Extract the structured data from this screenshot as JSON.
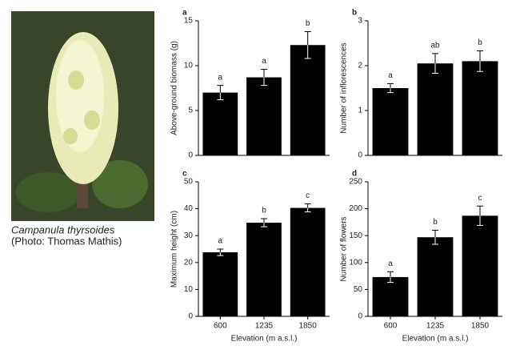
{
  "photo": {
    "caption": "Campanula thyrsoides",
    "credit": "(Photo: Thomas Mathis)"
  },
  "chart_data": [
    {
      "type": "bar",
      "panel": "a",
      "ylabel": "Above-ground biomass (g)",
      "categories": [
        null,
        null,
        null
      ],
      "values": [
        7.0,
        8.7,
        12.3
      ],
      "errors": [
        0.8,
        0.9,
        1.5
      ],
      "letters": [
        "a",
        "a",
        "b"
      ],
      "color": "#000000",
      "ylim": [
        0,
        15
      ],
      "yticks": [
        0,
        5,
        10,
        15
      ]
    },
    {
      "type": "bar",
      "panel": "b",
      "ylabel": "Number of inflorescences",
      "categories": [
        null,
        null,
        null
      ],
      "values": [
        1.5,
        2.05,
        2.1
      ],
      "errors": [
        0.1,
        0.22,
        0.23
      ],
      "letters": [
        "a",
        "ab",
        "b"
      ],
      "color": "#000000",
      "ylim": [
        0,
        3
      ],
      "yticks": [
        0,
        1,
        2,
        3
      ]
    },
    {
      "type": "bar",
      "panel": "c",
      "ylabel": "Maximum height (cm)",
      "xlabel": "Elevation (m a.s.l.)",
      "categories": [
        "600",
        "1235",
        "1850"
      ],
      "values": [
        23.8,
        34.8,
        40.3
      ],
      "errors": [
        1.2,
        1.5,
        1.5
      ],
      "letters": [
        "a",
        "b",
        "c"
      ],
      "color": "#000000",
      "ylim": [
        0,
        50
      ],
      "yticks": [
        0,
        10,
        20,
        30,
        40,
        50
      ]
    },
    {
      "type": "bar",
      "panel": "d",
      "ylabel": "Number of flowers",
      "xlabel": "Elevation (m a.s.l.)",
      "categories": [
        "600",
        "1235",
        "1850"
      ],
      "values": [
        73,
        147,
        187
      ],
      "errors": [
        10,
        13,
        18
      ],
      "letters": [
        "a",
        "b",
        "c"
      ],
      "color": "#000000",
      "ylim": [
        0,
        250
      ],
      "yticks": [
        0,
        50,
        100,
        150,
        200,
        250
      ]
    }
  ]
}
